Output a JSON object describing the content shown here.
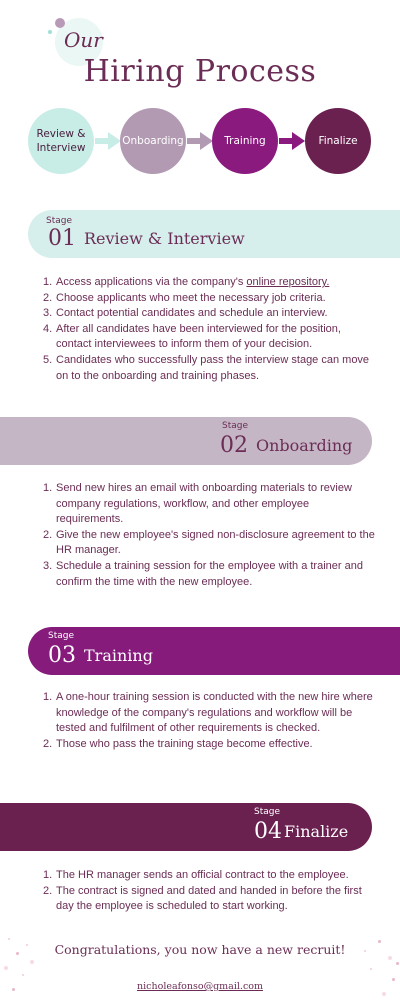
{
  "header": {
    "kicker": "Our",
    "title": "Hiring Process"
  },
  "flow": [
    {
      "label_line1": "Review &",
      "label_line2": "Interview",
      "color": "#c8ece6",
      "text_color": "#4a2040"
    },
    {
      "label_line1": "Onboarding",
      "label_line2": "",
      "color": "#b29ab2",
      "text_color": "#ffffff"
    },
    {
      "label_line1": "Training",
      "label_line2": "",
      "color": "#8b1a7f",
      "text_color": "#ffffff"
    },
    {
      "label_line1": "Finalize",
      "label_line2": "",
      "color": "#6b2150",
      "text_color": "#ffffff"
    }
  ],
  "stages": [
    {
      "stage_label": "Stage",
      "number": "01",
      "title": "Review & Interview",
      "color": "#d6efec",
      "steps": [
        {
          "pre": "Access applications via the company's ",
          "link": "online repository.",
          "post": ""
        },
        {
          "text": "Choose applicants who meet the necessary job criteria."
        },
        {
          "text": "Contact potential candidates and schedule an interview."
        },
        {
          "text": "After all candidates have been interviewed for the position, contact interviewees to inform them of your decision."
        },
        {
          "text": "Candidates who successfully pass the interview stage can move on to the onboarding and training phases."
        }
      ]
    },
    {
      "stage_label": "Stage",
      "number": "02",
      "title": "Onboarding",
      "color": "#c5b6c6",
      "steps": [
        {
          "text": "Send new hires an email with onboarding materials to review company regulations, workflow, and other employee requirements."
        },
        {
          "text": "Give the new employee's signed non-disclosure agreement to the HR manager."
        },
        {
          "text": "Schedule a training session for the employee with a trainer and confirm the time with the new employee."
        }
      ]
    },
    {
      "stage_label": "Stage",
      "number": "03",
      "title": "Training",
      "color": "#861b7c",
      "steps": [
        {
          "text": "A one-hour training session is conducted with the new hire where knowledge of the company's regulations and workflow will be tested and fulfilment of other requirements is checked."
        },
        {
          "text": "Those who pass the training stage become effective."
        }
      ]
    },
    {
      "stage_label": "Stage",
      "number": "04",
      "title": "Finalize",
      "color": "#6b2150",
      "steps": [
        {
          "text": "The HR manager sends an official contract to the employee."
        },
        {
          "text": "The contract is signed and dated and handed in before the first day the employee is scheduled to start working."
        }
      ]
    }
  ],
  "footer": {
    "congrats": "Congratulations, you now have a new recruit!",
    "email": "nicholeafonso@gmail.com"
  }
}
